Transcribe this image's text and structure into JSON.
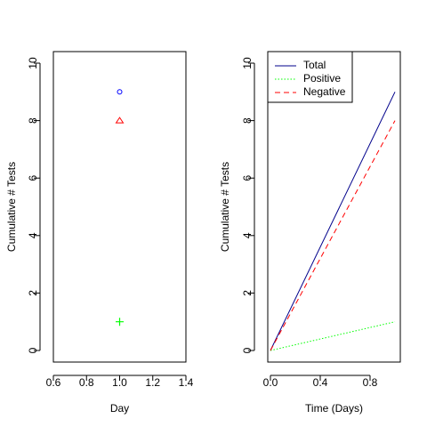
{
  "chart_data": [
    {
      "type": "scatter",
      "xlabel": "Day",
      "ylabel": "Cumulative # Tests",
      "xlim": [
        0.6,
        1.4
      ],
      "ylim": [
        0,
        10
      ],
      "xticks": [
        "0.6",
        "0.8",
        "1.0",
        "1.2",
        "1.4"
      ],
      "yticks": [
        "0",
        "2",
        "4",
        "6",
        "8",
        "10"
      ],
      "series": [
        {
          "x": [
            1.0
          ],
          "y": [
            9
          ],
          "marker": "circle",
          "color": "#0000ff"
        },
        {
          "x": [
            1.0
          ],
          "y": [
            8
          ],
          "marker": "triangle",
          "color": "#ff0000"
        },
        {
          "x": [
            1.0
          ],
          "y": [
            1
          ],
          "marker": "plus",
          "color": "#00ff00"
        }
      ]
    },
    {
      "type": "line",
      "xlabel": "Time (Days)",
      "ylabel": "Cumulative # Tests",
      "xlim": [
        0,
        1
      ],
      "ylim": [
        0,
        10
      ],
      "xticks": [
        "0.0",
        "0.4",
        "0.8"
      ],
      "yticks": [
        "0",
        "2",
        "4",
        "6",
        "8",
        "10"
      ],
      "series": [
        {
          "name": "Total",
          "x": [
            0,
            1
          ],
          "y": [
            0,
            9
          ],
          "color": "#00008b",
          "dash": "solid"
        },
        {
          "name": "Positive",
          "x": [
            0,
            1
          ],
          "y": [
            0,
            1
          ],
          "color": "#00ff00",
          "dash": "dotted"
        },
        {
          "name": "Negative",
          "x": [
            0,
            1
          ],
          "y": [
            0,
            8
          ],
          "color": "#ff0000",
          "dash": "dashed"
        }
      ],
      "legend": "top-left"
    }
  ]
}
